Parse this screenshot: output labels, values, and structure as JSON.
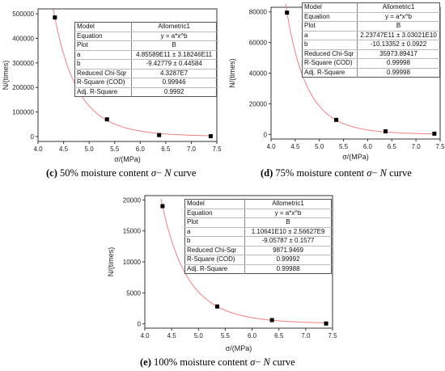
{
  "chart_data": [
    {
      "type": "scatter",
      "caption": {
        "letter": "(c)",
        "before": " 50% moisture content ",
        "sigma": "σ",
        "dash": "− ",
        "n": "N",
        "after": " curve"
      },
      "xlabel": "σ/(MPa)",
      "ylabel": "N/(times)",
      "xlim": [
        4.0,
        7.5
      ],
      "ylim": [
        -20000,
        520000
      ],
      "xticks": [
        "4.0",
        "4.5",
        "5.0",
        "5.5",
        "6.0",
        "6.5",
        "7.0",
        "7.5"
      ],
      "yticks": [
        "0",
        "100000",
        "200000",
        "300000",
        "400000",
        "500000"
      ],
      "points": [
        [
          4.33,
          485000
        ],
        [
          5.35,
          70000
        ],
        [
          6.37,
          6000
        ],
        [
          7.38,
          1500
        ]
      ],
      "fit": {
        "a": 485589000000,
        "b": -9.42779
      },
      "stats": [
        [
          "Model",
          "Allometric1"
        ],
        [
          "Equation",
          "y = a*x^b"
        ],
        [
          "Plot",
          "B"
        ],
        [
          "a",
          "4.85589E11 ± 3.18246E11"
        ],
        [
          "b",
          "-9.42779 ± 0.44584"
        ],
        [
          "Reduced Chi-Sqr",
          "4.3287E7"
        ],
        [
          "R-Square (COD)",
          "0.99946"
        ],
        [
          "Adj. R-Square",
          "0.9992"
        ]
      ],
      "colors": {
        "points": "#000000",
        "fit": "#f08080",
        "axis": "#333333"
      }
    },
    {
      "type": "scatter",
      "caption": {
        "letter": "(d)",
        "before": " 75% moisture content ",
        "sigma": "σ",
        "dash": "− ",
        "n": "N",
        "after": " curve"
      },
      "xlabel": "σ/(MPa)",
      "ylabel": "N/(times)",
      "xlim": [
        4.0,
        7.5
      ],
      "ylim": [
        -3000,
        83000
      ],
      "xticks": [
        "4.0",
        "4.5",
        "5.0",
        "5.5",
        "6.0",
        "6.5",
        "7.0",
        "7.5"
      ],
      "yticks": [
        "0",
        "20000",
        "40000",
        "60000",
        "80000"
      ],
      "points": [
        [
          4.33,
          79500
        ],
        [
          5.35,
          9500
        ],
        [
          6.37,
          2000
        ],
        [
          7.38,
          500
        ]
      ],
      "fit": {
        "a": 223747000000,
        "b": -10.13352
      },
      "stats": [
        [
          "Model",
          "Allometric1"
        ],
        [
          "Equation",
          "y = a*x^b"
        ],
        [
          "Plot",
          "B"
        ],
        [
          "a",
          "2.23747E11 ± 3.03021E10"
        ],
        [
          "b",
          "-10.13352 ± 0.0922"
        ],
        [
          "Reduced Chi-Sqr",
          "35973.89417"
        ],
        [
          "R-Square (COD)",
          "0.99998"
        ],
        [
          "Adj. R-Square",
          "0.99998"
        ]
      ],
      "colors": {
        "points": "#000000",
        "fit": "#f08080",
        "axis": "#333333"
      }
    },
    {
      "type": "scatter",
      "caption": {
        "letter": "(e)",
        "before": " 100% moisture content ",
        "sigma": "σ",
        "dash": "− ",
        "n": "N",
        "after": " curve"
      },
      "xlabel": "σ/(MPa)",
      "ylabel": "N/(times)",
      "xlim": [
        4.0,
        7.5
      ],
      "ylim": [
        -700,
        20700
      ],
      "xticks": [
        "4.0",
        "4.5",
        "5.0",
        "5.5",
        "6.0",
        "6.5",
        "7.0",
        "7.5"
      ],
      "yticks": [
        "0",
        "5000",
        "10000",
        "15000",
        "20000"
      ],
      "points": [
        [
          4.33,
          19000
        ],
        [
          5.35,
          2800
        ],
        [
          6.37,
          600
        ],
        [
          7.38,
          50
        ]
      ],
      "fit": {
        "a": 11064100000,
        "b": -9.05787
      },
      "stats": [
        [
          "Model",
          "Allometric1"
        ],
        [
          "Equation",
          "y = a*x^b"
        ],
        [
          "Plot",
          "B"
        ],
        [
          "a",
          "1.10641E10 ± 2.56627E9"
        ],
        [
          "b",
          "-9.05787 ± 0.1577"
        ],
        [
          "Reduced Chi-Sqr",
          "9871.9469"
        ],
        [
          "R-Square (COD)",
          "0.99992"
        ],
        [
          "Adj. R-Square",
          "0.99988"
        ]
      ],
      "colors": {
        "points": "#000000",
        "fit": "#f08080",
        "axis": "#333333"
      }
    }
  ]
}
